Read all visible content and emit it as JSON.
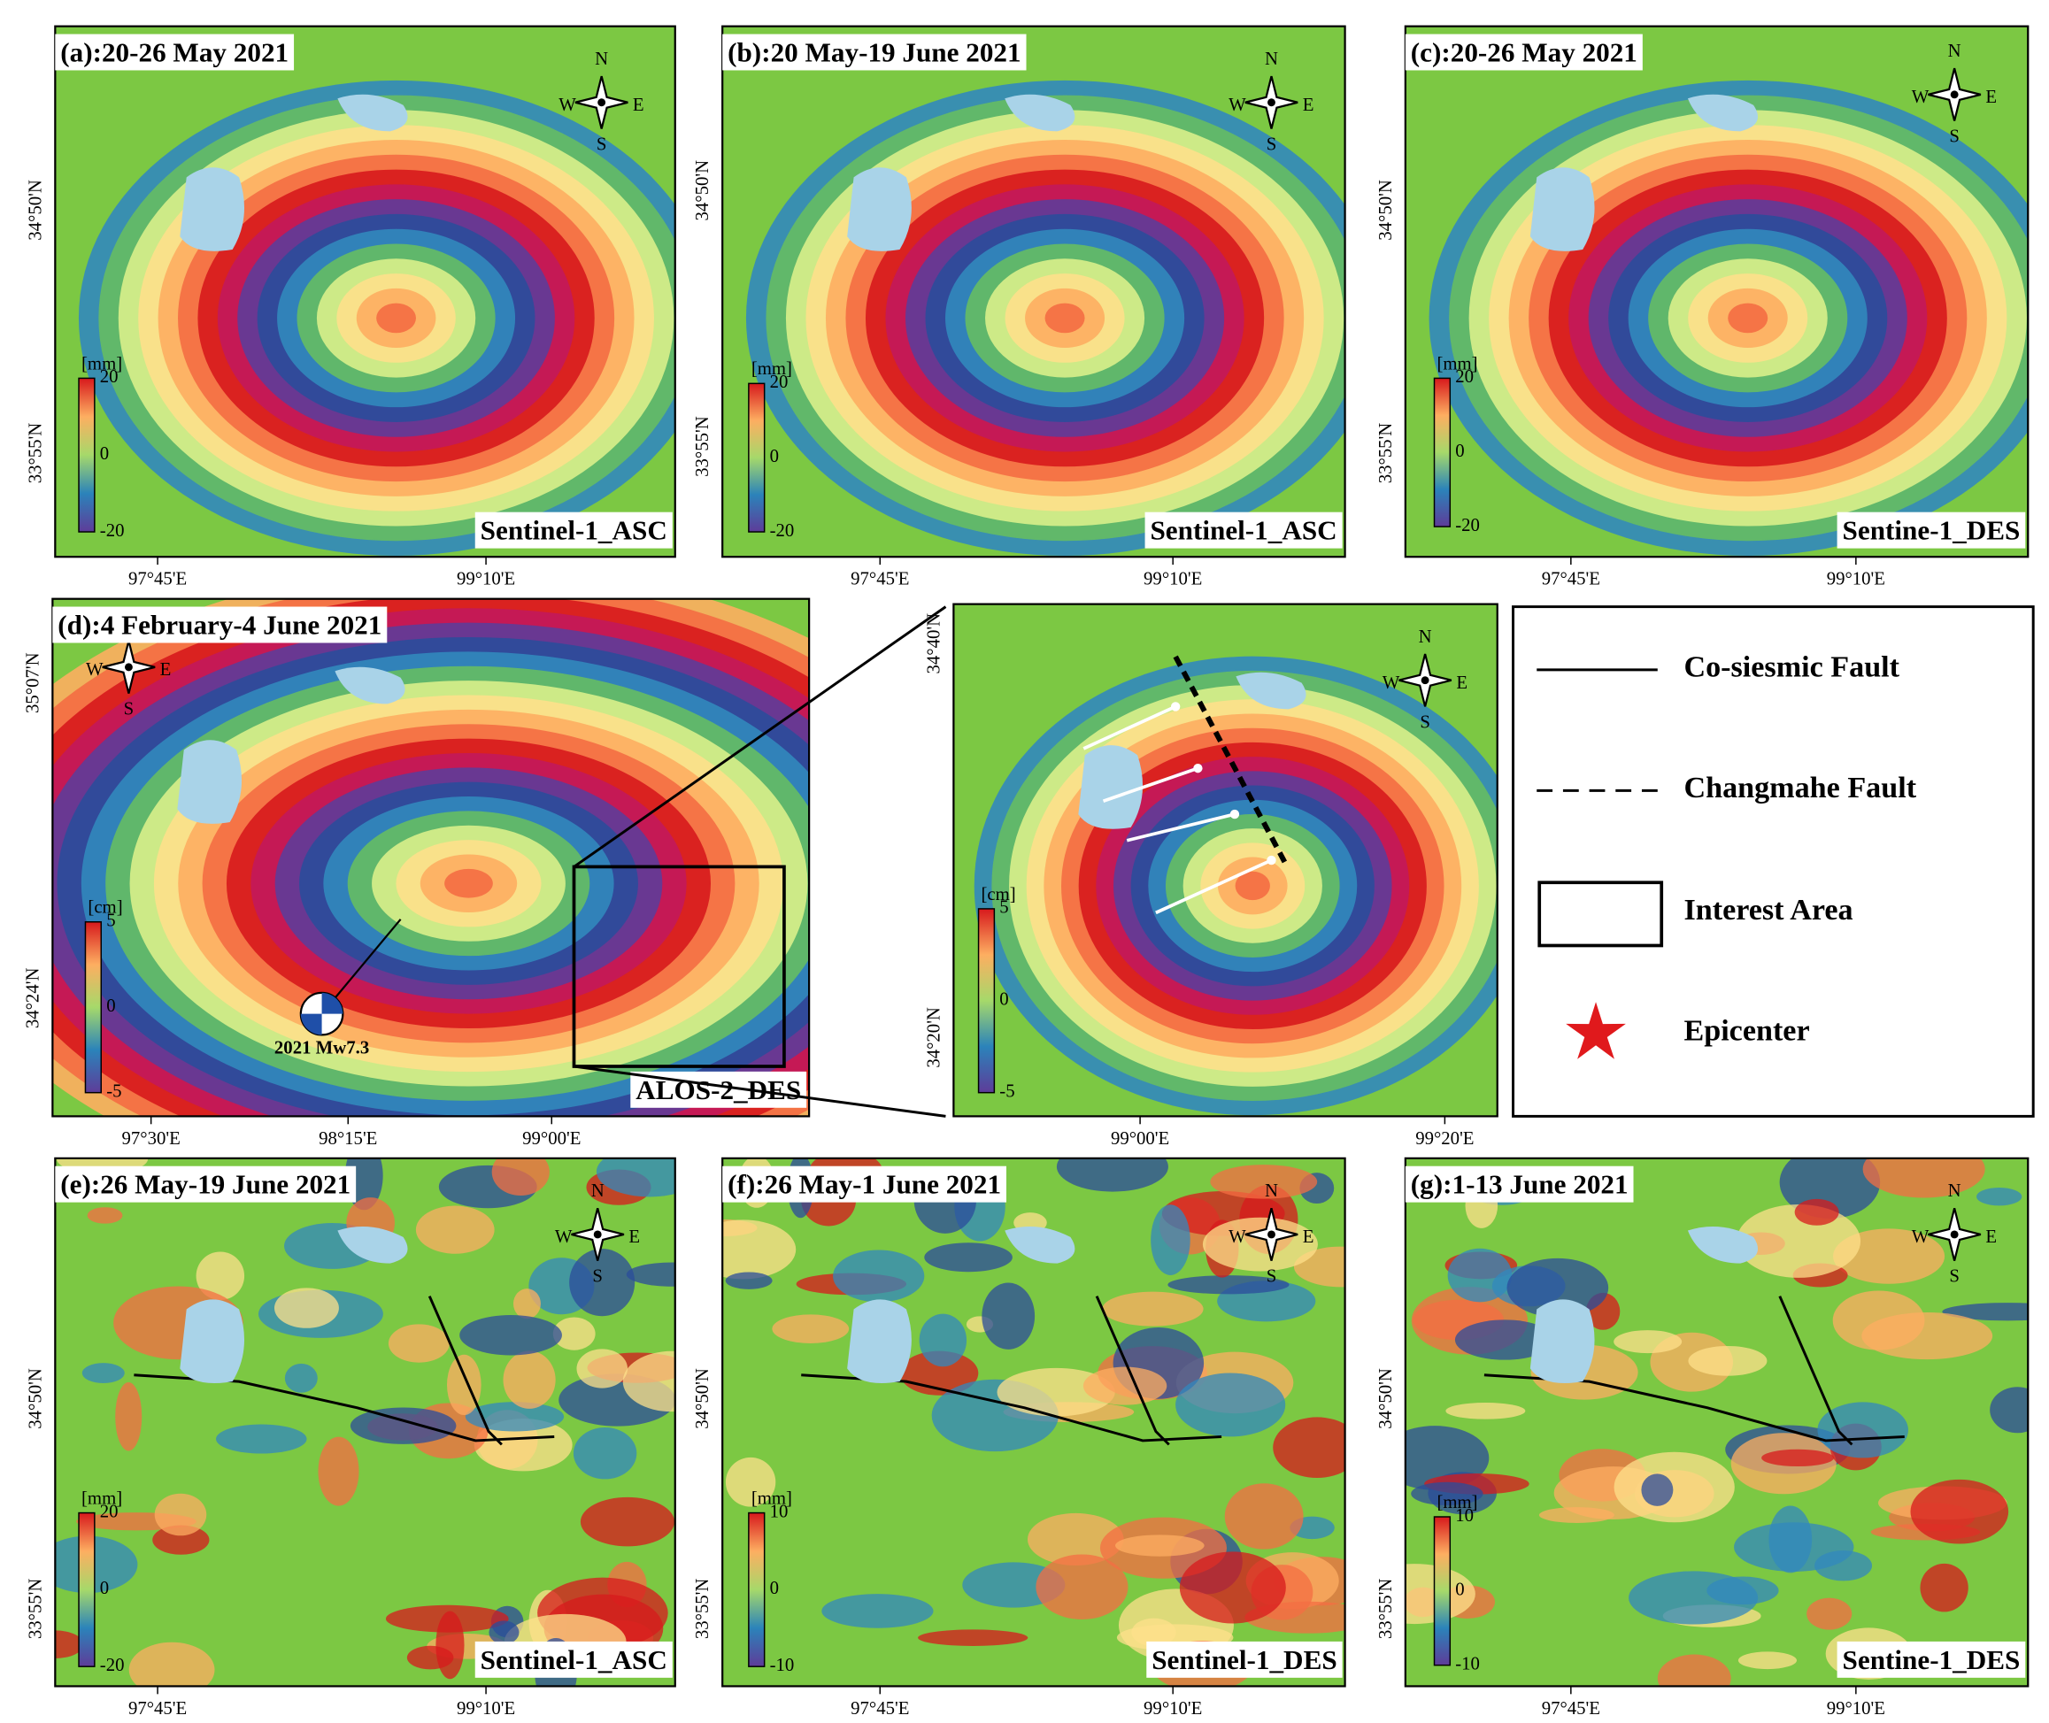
{
  "panels": [
    {
      "title": "(a):20-26 May 2021",
      "sensor": "Sentinel-1_ASC",
      "unit": "[mm]",
      "colorbar_ticks": [
        20,
        0,
        -20
      ],
      "xticks": [
        "97°45'E",
        "99°10'E"
      ],
      "yticks": [
        "34°50'N",
        "33°55'N"
      ],
      "compass": [
        "N",
        "W",
        "E",
        "S"
      ]
    },
    {
      "title": "(b):20 May-19 June 2021",
      "sensor": "Sentinel-1_ASC",
      "unit": "[mm]",
      "colorbar_ticks": [
        20,
        0,
        -20
      ],
      "xticks": [
        "97°45'E",
        "99°10'E"
      ],
      "yticks": [
        "34°50'N",
        "33°55'N"
      ],
      "compass": [
        "N",
        "W",
        "E",
        "S"
      ]
    },
    {
      "title": "(c):20-26 May 2021",
      "sensor": "Sentine-1_DES",
      "unit": "[mm]",
      "colorbar_ticks": [
        20,
        0,
        -20
      ],
      "xticks": [
        "97°45'E",
        "99°10'E"
      ],
      "yticks": [
        "34°50'N",
        "33°55'N"
      ],
      "compass": [
        "N",
        "W",
        "E",
        "S"
      ]
    },
    {
      "title": "(d):4 February-4 June 2021",
      "sensor": "ALOS-2_DES",
      "unit": "[cm]",
      "colorbar_ticks": [
        5,
        0,
        -5
      ],
      "xticks": [
        "97°30'E",
        "98°15'E",
        "99°00'E"
      ],
      "yticks": [
        "35°07'N",
        "34°24'N"
      ],
      "compass": [
        "W",
        "E",
        "S"
      ],
      "annotation": "2021 Mw7.3"
    },
    {
      "title": "(e):26 May-19 June 2021",
      "sensor": "Sentinel-1_ASC",
      "unit": "[mm]",
      "colorbar_ticks": [
        20,
        0,
        -20
      ],
      "xticks": [
        "97°45'E",
        "99°10'E"
      ],
      "yticks": [
        "34°50'N",
        "33°55'N"
      ],
      "compass": [
        "N",
        "W",
        "E",
        "S"
      ]
    },
    {
      "title": "(f):26 May-1 June 2021",
      "sensor": "Sentinel-1_DES",
      "unit": "[mm]",
      "colorbar_ticks": [
        10,
        0,
        -10
      ],
      "xticks": [
        "97°45'E",
        "99°10'E"
      ],
      "yticks": [
        "34°50'N",
        "33°55'N"
      ],
      "compass": [
        "N",
        "W",
        "E",
        "S"
      ]
    },
    {
      "title": "(g):1-13 June 2021",
      "sensor": "Sentine-1_DES",
      "unit": "[mm]",
      "colorbar_ticks": [
        10,
        0,
        -10
      ],
      "xticks": [
        "97°45'E",
        "99°10'E"
      ],
      "yticks": [
        "34°50'N",
        "33°55'N"
      ],
      "compass": [
        "N",
        "W",
        "E",
        "S"
      ]
    }
  ],
  "zoom": {
    "unit": "[cm]",
    "colorbar_ticks": [
      5,
      0,
      -5
    ],
    "xticks": [
      "99°00'E",
      "99°20'E"
    ],
    "yticks": [
      "34°40'N",
      "34°20'N"
    ],
    "compass": [
      "N",
      "W",
      "E",
      "S"
    ]
  },
  "legend": {
    "items": [
      "Co-siesmic Fault",
      "Changmahe Fault",
      "Interest Area",
      "Epicenter"
    ]
  }
}
